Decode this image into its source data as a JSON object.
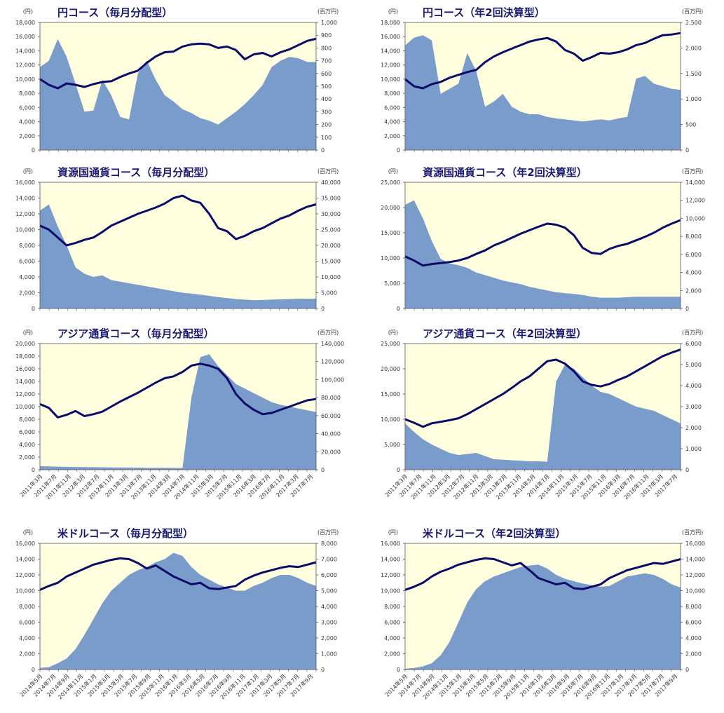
{
  "colors": {
    "plot_bg": "#FFFFE0",
    "area": "#7A9CCB",
    "line": "#0A0A6A",
    "text": "#333333",
    "title": "#1A1A70"
  },
  "chart_data": [
    {
      "type": "line",
      "title": "円コース（毎月分配型）",
      "left_unit": "(円)",
      "right_unit": "(百万円)",
      "left_ticks": [
        "18,000",
        "16,000",
        "14,000",
        "12,000",
        "10,000",
        "8,000",
        "6,000",
        "4,000",
        "2,000",
        "0"
      ],
      "right_ticks": [
        "1,000",
        "900",
        "800",
        "700",
        "600",
        "500",
        "400",
        "300",
        "200",
        "100",
        "0"
      ],
      "ylim_left": [
        0,
        18000
      ],
      "ylim_right": [
        0,
        1000
      ],
      "x_labels": [],
      "series": [
        {
          "axis": "left",
          "values": [
            10000,
            9200,
            8700,
            9400,
            9200,
            8900,
            9300,
            9600,
            9700,
            10300,
            10800,
            11200,
            12300,
            13200,
            13800,
            13900,
            14600,
            14900,
            15000,
            14900,
            14400,
            14600,
            14100,
            12800,
            13500,
            13700,
            13200,
            13800,
            14200,
            14800,
            15400,
            15700
          ]
        },
        {
          "axis": "right",
          "values": [
            650,
            700,
            870,
            730,
            520,
            300,
            310,
            550,
            430,
            260,
            240,
            600,
            700,
            550,
            430,
            380,
            320,
            290,
            250,
            230,
            200,
            250,
            300,
            360,
            430,
            510,
            650,
            700,
            730,
            720,
            690,
            690
          ]
        }
      ]
    },
    {
      "type": "line",
      "title": "円コース（年2回決算型）",
      "left_unit": "(円)",
      "right_unit": "(百万円)",
      "left_ticks": [
        "18,000",
        "16,000",
        "14,000",
        "12,000",
        "10,000",
        "8,000",
        "6,000",
        "4,000",
        "2,000",
        "0"
      ],
      "right_ticks": [
        "2,500",
        "2,000",
        "1,500",
        "1,000",
        "500",
        "0"
      ],
      "ylim_left": [
        0,
        18000
      ],
      "ylim_right": [
        0,
        2500
      ],
      "x_labels": [],
      "series": [
        {
          "axis": "left",
          "values": [
            10000,
            9000,
            8700,
            9300,
            9600,
            10200,
            10600,
            11000,
            11300,
            12400,
            13200,
            13800,
            14300,
            14800,
            15300,
            15600,
            15800,
            15300,
            14100,
            13600,
            12600,
            13100,
            13700,
            13600,
            13800,
            14200,
            14800,
            15100,
            15700,
            16200,
            16300,
            16500
          ]
        },
        {
          "axis": "right",
          "values": [
            2050,
            2200,
            2250,
            2150,
            1100,
            1200,
            1300,
            1900,
            1550,
            850,
            950,
            1100,
            850,
            750,
            700,
            700,
            650,
            620,
            600,
            580,
            560,
            580,
            600,
            580,
            620,
            650,
            1400,
            1450,
            1300,
            1250,
            1200,
            1180
          ]
        }
      ]
    },
    {
      "type": "line",
      "title": "資源国通貨コース（毎月分配型）",
      "left_unit": "(円)",
      "right_unit": "(百万円)",
      "left_ticks": [
        "16,000",
        "14,000",
        "12,000",
        "10,000",
        "8,000",
        "6,000",
        "4,000",
        "2,000",
        "0"
      ],
      "right_ticks": [
        "40,000",
        "35,000",
        "30,000",
        "25,000",
        "20,000",
        "15,000",
        "10,000",
        "5,000",
        "0"
      ],
      "ylim_left": [
        0,
        16000
      ],
      "ylim_right": [
        0,
        40000
      ],
      "x_labels": [],
      "series": [
        {
          "axis": "left",
          "values": [
            10500,
            10000,
            9000,
            8000,
            8300,
            8700,
            9000,
            9700,
            10500,
            11000,
            11500,
            12000,
            12400,
            12800,
            13300,
            14000,
            14300,
            13700,
            13400,
            12000,
            10200,
            9800,
            8800,
            9200,
            9800,
            10200,
            10800,
            11400,
            11800,
            12400,
            12900,
            13200
          ]
        },
        {
          "axis": "right",
          "values": [
            31000,
            33000,
            26000,
            20000,
            13000,
            11000,
            10000,
            10500,
            9000,
            8500,
            8000,
            7500,
            7000,
            6500,
            6000,
            5500,
            5000,
            4700,
            4400,
            4000,
            3600,
            3300,
            3000,
            2800,
            2600,
            2700,
            2800,
            2900,
            3000,
            3100,
            3100,
            3100
          ]
        }
      ]
    },
    {
      "type": "line",
      "title": "資源国通貨コース（年2回決算型）",
      "left_unit": "(円)",
      "right_unit": "(百万円)",
      "left_ticks": [
        "25,000",
        "20,000",
        "15,000",
        "10,000",
        "5,000",
        "0"
      ],
      "right_ticks": [
        "14,000",
        "12,000",
        "10,000",
        "8,000",
        "6,000",
        "4,000",
        "2,000",
        "0"
      ],
      "ylim_left": [
        0,
        25000
      ],
      "ylim_right": [
        0,
        14000
      ],
      "x_labels": [],
      "series": [
        {
          "axis": "left",
          "values": [
            10300,
            9500,
            8500,
            8800,
            9000,
            9200,
            9500,
            10000,
            10800,
            11500,
            12500,
            13200,
            14000,
            14800,
            15500,
            16200,
            16800,
            16600,
            16000,
            14500,
            12000,
            11000,
            10800,
            11800,
            12400,
            12800,
            13500,
            14200,
            15000,
            16000,
            16800,
            17500
          ]
        },
        {
          "axis": "right",
          "values": [
            11500,
            12000,
            10000,
            7500,
            5500,
            5000,
            4800,
            4500,
            4000,
            3700,
            3400,
            3100,
            2900,
            2700,
            2400,
            2200,
            2000,
            1800,
            1700,
            1600,
            1500,
            1300,
            1200,
            1200,
            1200,
            1250,
            1300,
            1300,
            1300,
            1300,
            1300,
            1300
          ]
        }
      ]
    },
    {
      "type": "line",
      "title": "アジア通貨コース（毎月分配型）",
      "left_unit": "(円)",
      "right_unit": "(百万円)",
      "left_ticks": [
        "20,000",
        "18,000",
        "16,000",
        "14,000",
        "12,000",
        "10,000",
        "8,000",
        "6,000",
        "4,000",
        "2,000",
        "0"
      ],
      "right_ticks": [
        "140,000",
        "120,000",
        "100,000",
        "80,000",
        "60,000",
        "40,000",
        "20,000",
        "0"
      ],
      "ylim_left": [
        0,
        20000
      ],
      "ylim_right": [
        0,
        140000
      ],
      "x_labels": [
        "2011年3月",
        "2011年7月",
        "2011年11月",
        "2012年3月",
        "2012年7月",
        "2012年11月",
        "2013年3月",
        "2013年7月",
        "2013年11月",
        "2014年3月",
        "2014年7月",
        "2014年11月",
        "2015年3月",
        "2015年7月",
        "2015年11月",
        "2016年3月",
        "2016年7月",
        "2016年11月",
        "2017年3月",
        "2017年7月"
      ],
      "series": [
        {
          "axis": "left",
          "values": [
            10400,
            9800,
            8300,
            8700,
            9300,
            8500,
            8800,
            9200,
            10000,
            10800,
            11500,
            12200,
            13000,
            13800,
            14500,
            14800,
            15500,
            16500,
            16800,
            16500,
            16000,
            14500,
            12000,
            10500,
            9500,
            8800,
            9000,
            9500,
            10000,
            10500,
            11000,
            11200
          ]
        },
        {
          "axis": "right",
          "values": [
            4000,
            3700,
            3400,
            3200,
            3000,
            2900,
            2800,
            2700,
            2600,
            2500,
            2400,
            2300,
            2200,
            2100,
            2100,
            2000,
            2000,
            80000,
            125000,
            128000,
            115000,
            105000,
            95000,
            90000,
            85000,
            80000,
            75000,
            72000,
            70000,
            68000,
            66000,
            64000
          ]
        }
      ]
    },
    {
      "type": "line",
      "title": "アジア通貨コース（年2回決算型）",
      "left_unit": "(円)",
      "right_unit": "(百万円)",
      "left_ticks": [
        "25,000",
        "20,000",
        "15,000",
        "10,000",
        "5,000",
        "0"
      ],
      "right_ticks": [
        "6,000",
        "5,000",
        "4,000",
        "3,000",
        "2,000",
        "1,000",
        "0"
      ],
      "ylim_left": [
        0,
        25000
      ],
      "ylim_right": [
        0,
        6000
      ],
      "x_labels": [
        "2011年3月",
        "2011年7月",
        "2011年11月",
        "2012年3月",
        "2012年7月",
        "2012年11月",
        "2013年3月",
        "2013年7月",
        "2013年11月",
        "2014年3月",
        "2014年7月",
        "2014年11月",
        "2015年3月",
        "2015年7月",
        "2015年11月",
        "2016年3月",
        "2016年7月",
        "2016年11月",
        "2017年3月",
        "2017年7月"
      ],
      "series": [
        {
          "axis": "left",
          "values": [
            10000,
            9300,
            8500,
            9200,
            9500,
            9800,
            10200,
            11000,
            12000,
            13000,
            14000,
            15000,
            16200,
            17500,
            18500,
            20000,
            21500,
            21800,
            21000,
            19500,
            17500,
            16800,
            16500,
            17000,
            17800,
            18500,
            19500,
            20500,
            21500,
            22500,
            23200,
            23800
          ]
        },
        {
          "axis": "right",
          "values": [
            2200,
            1800,
            1450,
            1200,
            1000,
            800,
            700,
            750,
            800,
            650,
            500,
            480,
            450,
            430,
            400,
            400,
            380,
            4200,
            5000,
            4800,
            4400,
            4000,
            3700,
            3600,
            3400,
            3200,
            3000,
            2900,
            2800,
            2600,
            2400,
            2200
          ]
        }
      ]
    },
    {
      "type": "line",
      "title": "米ドルコース（毎月分配型）",
      "left_unit": "(円)",
      "right_unit": "(百万円)",
      "left_ticks": [
        "16,000",
        "14,000",
        "12,000",
        "10,000",
        "8,000",
        "6,000",
        "4,000",
        "2,000",
        "0"
      ],
      "right_ticks": [
        "8,000",
        "7,000",
        "6,000",
        "5,000",
        "4,000",
        "3,000",
        "2,000",
        "1,000",
        "0"
      ],
      "ylim_left": [
        0,
        16000
      ],
      "ylim_right": [
        0,
        8000
      ],
      "x_labels": [
        "2014年5月",
        "2014年7月",
        "2014年9月",
        "2014年11月",
        "2015年1月",
        "2015年3月",
        "2015年5月",
        "2015年7月",
        "2015年9月",
        "2015年11月",
        "2016年1月",
        "2016年3月",
        "2016年5月",
        "2016年7月",
        "2016年9月",
        "2016年11月",
        "2017年1月",
        "2017年3月",
        "2017年5月",
        "2017年7月",
        "2017年9月"
      ],
      "series": [
        {
          "axis": "left",
          "values": [
            10100,
            10600,
            11000,
            11800,
            12300,
            12800,
            13300,
            13600,
            13900,
            14100,
            14000,
            13500,
            12800,
            13200,
            12500,
            11800,
            11300,
            10800,
            11000,
            10300,
            10200,
            10400,
            10600,
            11400,
            11900,
            12300,
            12600,
            12900,
            13100,
            13000,
            13300,
            13600
          ]
        },
        {
          "axis": "right",
          "values": [
            100,
            150,
            400,
            700,
            1300,
            2200,
            3200,
            4200,
            5000,
            5500,
            6000,
            6300,
            6500,
            6800,
            7000,
            7400,
            7200,
            6500,
            6000,
            5700,
            5400,
            5200,
            5000,
            5000,
            5300,
            5500,
            5800,
            6000,
            6000,
            5800,
            5500,
            5300
          ]
        }
      ]
    },
    {
      "type": "line",
      "title": "米ドルコース（年2回決算型）",
      "left_unit": "(円)",
      "right_unit": "(百万円)",
      "left_ticks": [
        "16,000",
        "14,000",
        "12,000",
        "10,000",
        "8,000",
        "6,000",
        "4,000",
        "2,000",
        "0"
      ],
      "right_ticks": [
        "16,000",
        "14,000",
        "12,000",
        "10,000",
        "8,000",
        "6,000",
        "4,000",
        "2,000",
        "0"
      ],
      "ylim_left": [
        0,
        16000
      ],
      "ylim_right": [
        0,
        16000
      ],
      "x_labels": [
        "2014年5月",
        "2014年7月",
        "2014年9月",
        "2014年11月",
        "2015年1月",
        "2015年3月",
        "2015年5月",
        "2015年7月",
        "2015年9月",
        "2015年11月",
        "2016年1月",
        "2016年3月",
        "2016年5月",
        "2016年7月",
        "2016年9月",
        "2016年11月",
        "2017年1月",
        "2017年3月",
        "2017年5月",
        "2017年7月",
        "2017年9月"
      ],
      "series": [
        {
          "axis": "left",
          "values": [
            10100,
            10500,
            11000,
            11800,
            12400,
            12800,
            13300,
            13600,
            13900,
            14100,
            14000,
            13600,
            13200,
            13500,
            12600,
            11600,
            11200,
            10800,
            11000,
            10300,
            10200,
            10500,
            10800,
            11600,
            12100,
            12600,
            12900,
            13200,
            13500,
            13400,
            13700,
            14000
          ]
        },
        {
          "axis": "right",
          "values": [
            100,
            200,
            400,
            800,
            1800,
            3500,
            6000,
            8500,
            10200,
            11200,
            11800,
            12200,
            12600,
            13000,
            13200,
            13300,
            12800,
            12000,
            11500,
            11200,
            10900,
            10700,
            10500,
            10600,
            11200,
            11800,
            12000,
            12200,
            12000,
            11500,
            10800,
            10400
          ]
        }
      ]
    }
  ]
}
